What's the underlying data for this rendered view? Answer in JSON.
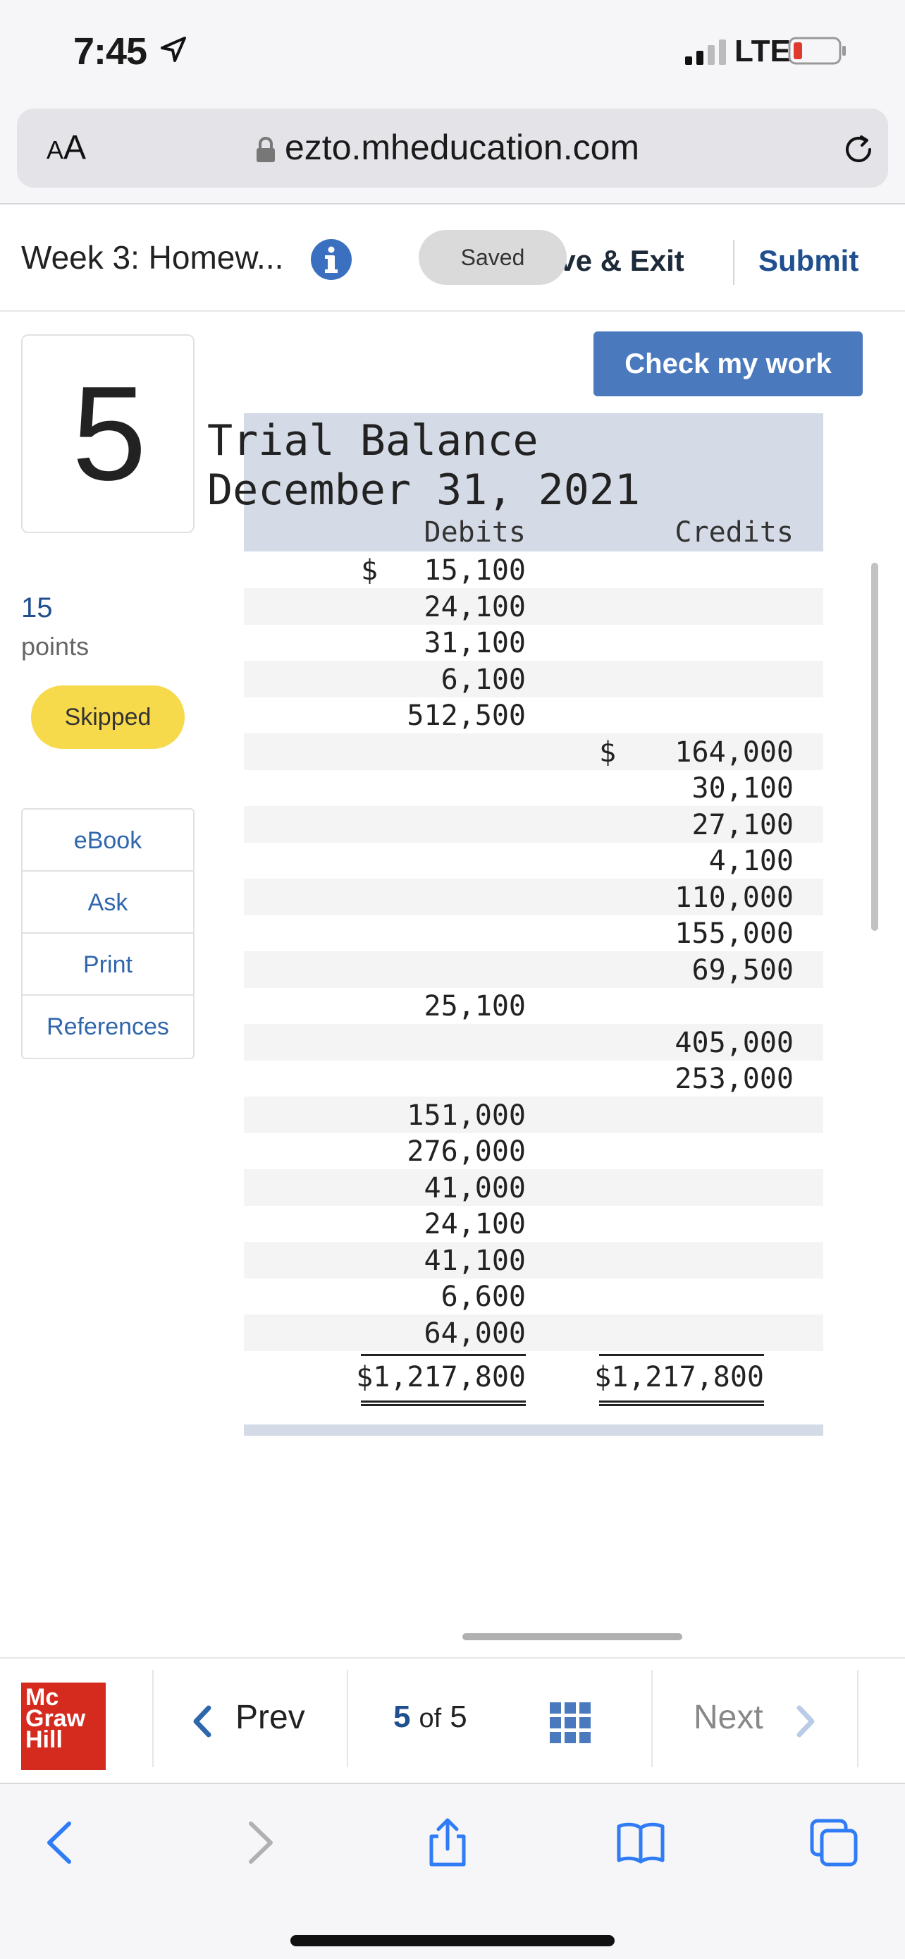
{
  "status_bar": {
    "time": "7:45",
    "network": "LTE"
  },
  "browser": {
    "text_size_label_small": "A",
    "text_size_label_large": "A",
    "url": "ezto.mheducation.com"
  },
  "header": {
    "assignment_title": "Week 3: Homew...",
    "saved_label": "Saved",
    "save_exit_label": "ave & Exit",
    "submit_label": "Submit"
  },
  "sidebar": {
    "question_number": "5",
    "points_value": "15",
    "points_label": "points",
    "status_badge": "Skipped",
    "resources": [
      "eBook",
      "Ask",
      "Print",
      "References"
    ]
  },
  "check_work_label": "Check my work",
  "trial_balance": {
    "title_line1": "Trial Balance",
    "title_line2": "December 31, 2021",
    "debits_heading": "Debits",
    "credits_heading": "Credits",
    "rows": [
      {
        "debit": "15,100",
        "credit": "",
        "debit_dollar": true,
        "credit_dollar": false
      },
      {
        "debit": "24,100",
        "credit": "",
        "debit_dollar": false,
        "credit_dollar": false
      },
      {
        "debit": "31,100",
        "credit": "",
        "debit_dollar": false,
        "credit_dollar": false
      },
      {
        "debit": "6,100",
        "credit": "",
        "debit_dollar": false,
        "credit_dollar": false
      },
      {
        "debit": "512,500",
        "credit": "",
        "debit_dollar": false,
        "credit_dollar": false
      },
      {
        "debit": "",
        "credit": "164,000",
        "debit_dollar": false,
        "credit_dollar": true
      },
      {
        "debit": "",
        "credit": "30,100",
        "debit_dollar": false,
        "credit_dollar": false
      },
      {
        "debit": "",
        "credit": "27,100",
        "debit_dollar": false,
        "credit_dollar": false
      },
      {
        "debit": "",
        "credit": "4,100",
        "debit_dollar": false,
        "credit_dollar": false
      },
      {
        "debit": "",
        "credit": "110,000",
        "debit_dollar": false,
        "credit_dollar": false
      },
      {
        "debit": "",
        "credit": "155,000",
        "debit_dollar": false,
        "credit_dollar": false
      },
      {
        "debit": "",
        "credit": "69,500",
        "debit_dollar": false,
        "credit_dollar": false
      },
      {
        "debit": "25,100",
        "credit": "",
        "debit_dollar": false,
        "credit_dollar": false
      },
      {
        "debit": "",
        "credit": "405,000",
        "debit_dollar": false,
        "credit_dollar": false
      },
      {
        "debit": "",
        "credit": "253,000",
        "debit_dollar": false,
        "credit_dollar": false
      },
      {
        "debit": "151,000",
        "credit": "",
        "debit_dollar": false,
        "credit_dollar": false
      },
      {
        "debit": "276,000",
        "credit": "",
        "debit_dollar": false,
        "credit_dollar": false
      },
      {
        "debit": "41,000",
        "credit": "",
        "debit_dollar": false,
        "credit_dollar": false
      },
      {
        "debit": "24,100",
        "credit": "",
        "debit_dollar": false,
        "credit_dollar": false
      },
      {
        "debit": "41,100",
        "credit": "",
        "debit_dollar": false,
        "credit_dollar": false
      },
      {
        "debit": "6,600",
        "credit": "",
        "debit_dollar": false,
        "credit_dollar": false
      },
      {
        "debit": "64,000",
        "credit": "",
        "debit_dollar": false,
        "credit_dollar": false
      }
    ],
    "total_debit": "$1,217,800",
    "total_credit": "$1,217,800"
  },
  "bottom_nav": {
    "logo_lines": [
      "Mc",
      "Graw",
      "Hill"
    ],
    "prev_label": "Prev",
    "page_current": "5",
    "page_of": "of",
    "page_total": "5",
    "next_label": "Next"
  },
  "colors": {
    "accent_blue": "#1f4f8e",
    "check_button": "#4a79bd",
    "skipped_yellow": "#f7d94c",
    "logo_red": "#d52b1e",
    "table_header": "#d5dbe6"
  }
}
